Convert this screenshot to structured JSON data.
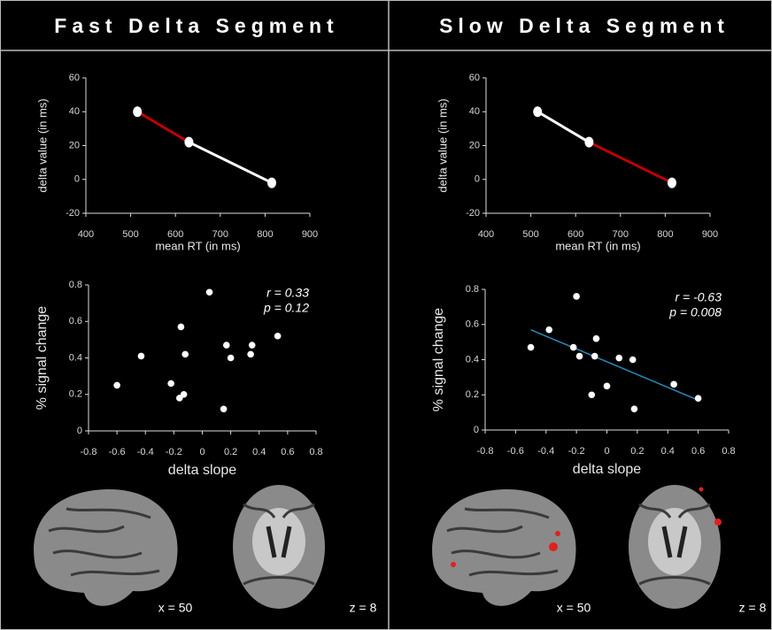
{
  "panels": [
    {
      "title": "Fast Delta Segment",
      "brain_labels": [
        "x = 50",
        "z = 8"
      ]
    },
    {
      "title": "Slow Delta Segment",
      "brain_labels": [
        "x = 50",
        "z = 8"
      ]
    }
  ],
  "chart_data": [
    {
      "type": "line",
      "x_label": "mean RT (in ms)",
      "y_label": "delta value (in ms)",
      "x": [
        515,
        630,
        815
      ],
      "series": [
        {
          "values": [
            40,
            22,
            -2
          ],
          "color": "#ffffff",
          "segment_colors": [
            "#c00000",
            "#ffffff"
          ]
        }
      ],
      "xlim": [
        400,
        900
      ],
      "xticks": [
        400,
        500,
        600,
        700,
        800,
        900
      ],
      "ylim": [
        -20,
        60
      ],
      "yticks": [
        -20,
        0,
        20,
        40,
        60
      ]
    },
    {
      "type": "line",
      "x_label": "mean RT (in ms)",
      "y_label": "delta value (in ms)",
      "x": [
        515,
        630,
        815
      ],
      "series": [
        {
          "values": [
            40,
            22,
            -2
          ],
          "color": "#ffffff",
          "segment_colors": [
            "#ffffff",
            "#c00000"
          ]
        }
      ],
      "xlim": [
        400,
        900
      ],
      "xticks": [
        400,
        500,
        600,
        700,
        800,
        900
      ],
      "ylim": [
        -20,
        60
      ],
      "yticks": [
        -20,
        0,
        20,
        40,
        60
      ]
    },
    {
      "type": "scatter",
      "x_label": "delta slope",
      "y_label": "% signal change",
      "x": [
        -0.6,
        -0.43,
        -0.22,
        -0.16,
        -0.15,
        -0.13,
        -0.12,
        0.05,
        0.15,
        0.17,
        0.2,
        0.34,
        0.35,
        0.53
      ],
      "values": [
        0.25,
        0.41,
        0.26,
        0.18,
        0.57,
        0.2,
        0.42,
        0.76,
        0.12,
        0.47,
        0.4,
        0.42,
        0.47,
        0.52
      ],
      "color": "#ffffff",
      "annotations": [
        "r = 0.33",
        "p = 0.12"
      ],
      "xlim": [
        -0.8,
        0.8
      ],
      "xticks": [
        -0.8,
        -0.6,
        -0.4,
        -0.2,
        0,
        0.2,
        0.4,
        0.6,
        0.8
      ],
      "ylim": [
        0,
        0.8
      ],
      "yticks": [
        0,
        0.2,
        0.4,
        0.6,
        0.8
      ]
    },
    {
      "type": "scatter",
      "x_label": "delta slope",
      "y_label": "% signal change",
      "x": [
        -0.5,
        -0.38,
        -0.22,
        -0.2,
        -0.18,
        -0.1,
        -0.08,
        -0.07,
        0,
        0.08,
        0.17,
        0.18,
        0.44,
        0.6
      ],
      "values": [
        0.47,
        0.57,
        0.47,
        0.76,
        0.42,
        0.2,
        0.42,
        0.52,
        0.25,
        0.41,
        0.4,
        0.12,
        0.26,
        0.18
      ],
      "color": "#ffffff",
      "trend_line": {
        "x": [
          -0.5,
          0.6
        ],
        "values": [
          0.57,
          0.17
        ],
        "color": "#2a8ab8"
      },
      "annotations": [
        "r = -0.63",
        "p = 0.008"
      ],
      "xlim": [
        -0.8,
        0.8
      ],
      "xticks": [
        -0.8,
        -0.6,
        -0.4,
        -0.2,
        0,
        0.2,
        0.4,
        0.6,
        0.8
      ],
      "ylim": [
        0,
        0.8
      ],
      "yticks": [
        0,
        0.2,
        0.4,
        0.6,
        0.8
      ]
    }
  ]
}
